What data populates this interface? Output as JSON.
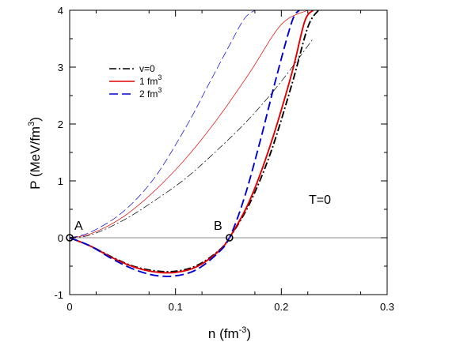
{
  "chart_data": {
    "type": "line",
    "xlabel": "n (fm",
    "xlabel_sup": "-3",
    "xlabel_close": ")",
    "ylabel": "P (MeV/fm",
    "ylabel_sup": "3",
    "ylabel_close": ")",
    "xlim": [
      0,
      0.3
    ],
    "ylim": [
      -1,
      4
    ],
    "xticks": [
      0,
      0.1,
      0.2,
      0.3
    ],
    "yticks": [
      -1,
      0,
      1,
      2,
      3,
      4
    ],
    "xtick_labels": [
      "0",
      "0.1",
      "0.2",
      "0.3"
    ],
    "ytick_labels": [
      "-1",
      "0",
      "1",
      "2",
      "3",
      "4"
    ],
    "legend_position": "top-left",
    "legend": [
      {
        "label": "v=0",
        "sup": "",
        "color": "#000000",
        "dash": "dashdot"
      },
      {
        "label": "1 fm",
        "sup": "3",
        "color": "#e00000",
        "dash": "solid"
      },
      {
        "label": "2 fm",
        "sup": "3",
        "color": "#0000d0",
        "dash": "dashed"
      }
    ],
    "annotations": {
      "temperature": "T=0",
      "point_a": "A",
      "point_b": "B"
    },
    "marked_points": [
      {
        "name": "A",
        "x": 0.0,
        "y": 0.0
      },
      {
        "name": "B",
        "x": 0.151,
        "y": 0.0
      }
    ],
    "series": [
      {
        "name": "v=0",
        "color": "#000000",
        "dash": "dashdot",
        "weight": "thick",
        "x": [
          0,
          0.02,
          0.04,
          0.06,
          0.08,
          0.1,
          0.12,
          0.14,
          0.151,
          0.17,
          0.19,
          0.21,
          0.225,
          0.235
        ],
        "y": [
          0,
          -0.15,
          -0.34,
          -0.5,
          -0.58,
          -0.59,
          -0.49,
          -0.24,
          0,
          0.6,
          1.5,
          2.7,
          3.7,
          4.0
        ]
      },
      {
        "name": "1 fm3",
        "color": "#e00000",
        "dash": "solid",
        "weight": "thick",
        "x": [
          0,
          0.02,
          0.04,
          0.06,
          0.08,
          0.1,
          0.12,
          0.14,
          0.151,
          0.17,
          0.19,
          0.21,
          0.222,
          0.23
        ],
        "y": [
          0,
          -0.15,
          -0.35,
          -0.51,
          -0.6,
          -0.61,
          -0.51,
          -0.25,
          0,
          0.65,
          1.65,
          2.9,
          3.8,
          4.0
        ]
      },
      {
        "name": "2 fm3",
        "color": "#0000d0",
        "dash": "dashed",
        "weight": "thick",
        "x": [
          0,
          0.02,
          0.04,
          0.06,
          0.08,
          0.1,
          0.12,
          0.14,
          0.151,
          0.165,
          0.18,
          0.195,
          0.21,
          0.217
        ],
        "y": [
          0,
          -0.15,
          -0.37,
          -0.55,
          -0.66,
          -0.67,
          -0.56,
          -0.27,
          0,
          0.7,
          1.7,
          2.8,
          3.8,
          4.0
        ]
      },
      {
        "name": "v=0 thin",
        "color": "#000000",
        "dash": "dashdot",
        "weight": "thin",
        "x": [
          0,
          0.02,
          0.05,
          0.08,
          0.11,
          0.14,
          0.17,
          0.2,
          0.23
        ],
        "y": [
          0,
          0.05,
          0.3,
          0.65,
          1.05,
          1.55,
          2.1,
          2.75,
          3.5
        ]
      },
      {
        "name": "1 fm3 thin",
        "color": "#e00000",
        "dash": "solid",
        "weight": "thin",
        "x": [
          0,
          0.02,
          0.05,
          0.08,
          0.11,
          0.14,
          0.17,
          0.2,
          0.225
        ],
        "y": [
          0,
          0.07,
          0.36,
          0.82,
          1.4,
          2.1,
          2.9,
          3.75,
          4.0
        ]
      },
      {
        "name": "2 fm3 thin",
        "color": "#0000d0",
        "dash": "dashed",
        "weight": "thin",
        "x": [
          0,
          0.02,
          0.05,
          0.08,
          0.11,
          0.13,
          0.15,
          0.165,
          0.175
        ],
        "y": [
          0,
          0.1,
          0.45,
          1.05,
          1.95,
          2.65,
          3.35,
          3.85,
          4.0
        ]
      }
    ]
  }
}
